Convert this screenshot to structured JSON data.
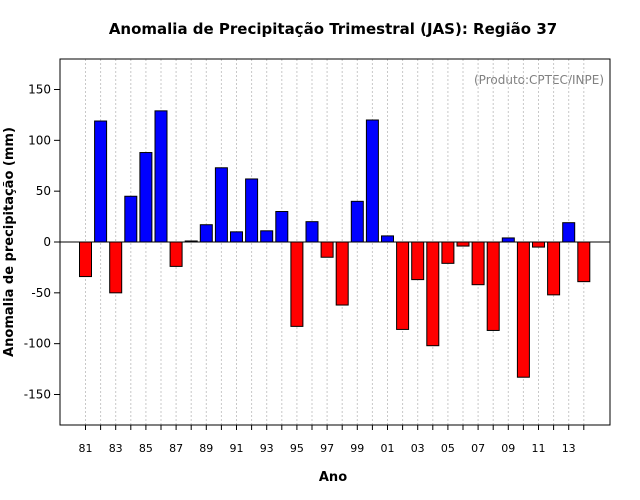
{
  "chart_data": {
    "type": "bar",
    "title": "Anomalia de Precipitação Trimestral (JAS): Região 37",
    "xlabel": "Ano",
    "ylabel": "Anomalia de precipitação (mm)",
    "annotation": "(Produto:CPTEC/INPE)",
    "ylim": [
      -180,
      180
    ],
    "yticks": [
      -150,
      -100,
      -50,
      0,
      50,
      100,
      150
    ],
    "categories": [
      "1981",
      "1982",
      "1983",
      "1984",
      "1985",
      "1986",
      "1987",
      "1988",
      "1989",
      "1990",
      "1991",
      "1992",
      "1993",
      "1994",
      "1995",
      "1996",
      "1997",
      "1998",
      "1999",
      "2000",
      "2001",
      "2002",
      "2003",
      "2004",
      "2005",
      "2006",
      "2007",
      "2008",
      "2009",
      "2010",
      "2011",
      "2012",
      "2013",
      "2014"
    ],
    "xtick_labels": [
      "81",
      "83",
      "85",
      "87",
      "89",
      "91",
      "93",
      "95",
      "97",
      "99",
      "01",
      "03",
      "05",
      "07",
      "09",
      "11",
      "13"
    ],
    "values": [
      -34,
      119,
      -50,
      45,
      88,
      129,
      -24,
      1,
      17,
      73,
      10,
      62,
      11,
      30,
      -83,
      20,
      -15,
      -62,
      40,
      120,
      6,
      -86,
      -37,
      -102,
      -21,
      -4,
      -42,
      -87,
      4,
      -133,
      -5,
      -52,
      19,
      -39
    ],
    "colors": {
      "positive": "#0000ff",
      "negative": "#ff0000",
      "grid": "#c8c8c8"
    },
    "grid": true
  }
}
